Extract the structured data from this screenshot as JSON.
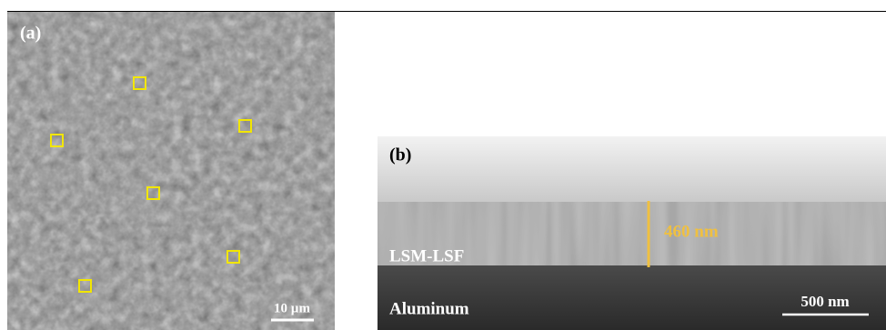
{
  "panels": [
    {
      "label": "(a)",
      "scale_bar": "10 µm"
    },
    {
      "label": "(b)",
      "thickness": "460 nm",
      "layers": [
        "LSM-LSF",
        "Aluminum"
      ],
      "scale_bar": "500 nm"
    }
  ]
}
